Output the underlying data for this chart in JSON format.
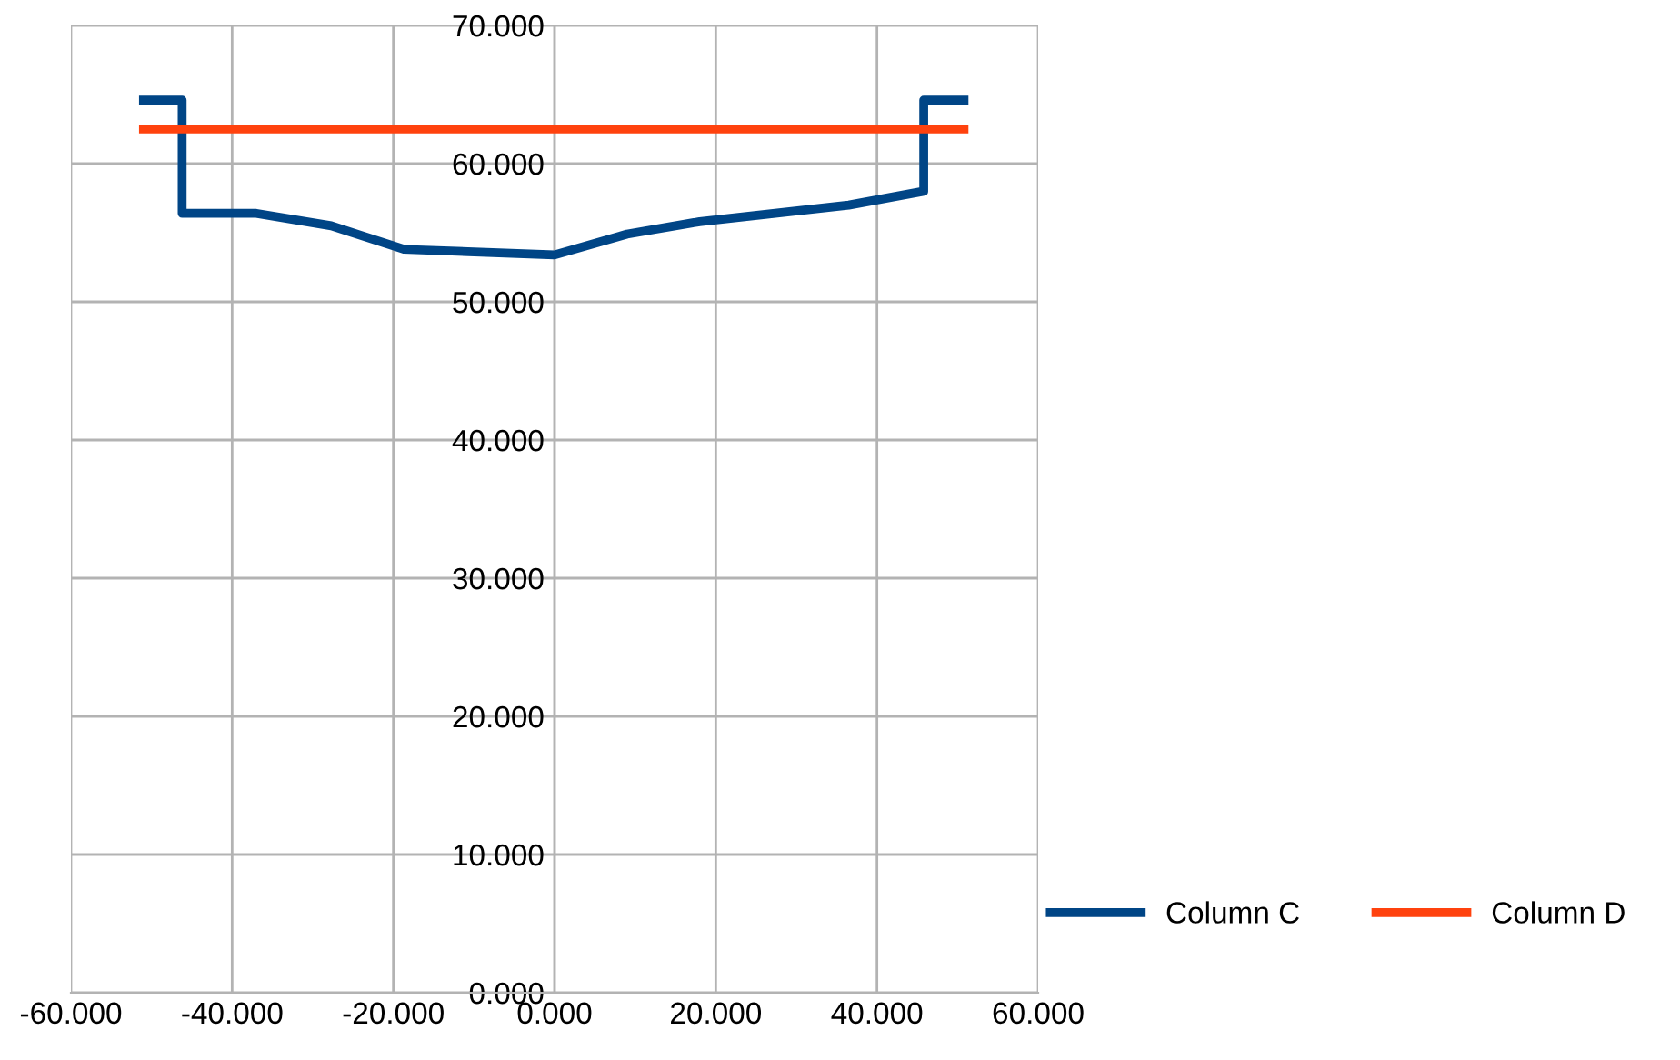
{
  "chart_data": {
    "type": "line",
    "series": [
      {
        "name": "Column C",
        "color": "#004586",
        "x": [
          -51.0,
          -46.2,
          -46.2,
          -37.0,
          -27.7,
          -18.7,
          0,
          9.0,
          18.0,
          36.5,
          45.8,
          45.8,
          50.8
        ],
        "values": [
          64.6,
          64.6,
          56.4,
          56.4,
          55.5,
          53.8,
          53.4,
          54.9,
          55.8,
          57.0,
          58.0,
          64.6,
          64.6
        ]
      },
      {
        "name": "Column D",
        "color": "#ff420e",
        "x": [
          -51.0,
          50.8
        ],
        "values": [
          62.5,
          62.5
        ]
      }
    ],
    "xlim": [
      -60,
      60
    ],
    "ylim": [
      0,
      70
    ],
    "xticks": [
      {
        "value": -60,
        "label": "-60.000"
      },
      {
        "value": -40,
        "label": "-40.000"
      },
      {
        "value": -20,
        "label": "-20.000"
      },
      {
        "value": 0,
        "label": "0.000"
      },
      {
        "value": 20,
        "label": "20.000"
      },
      {
        "value": 40,
        "label": "40.000"
      },
      {
        "value": 60,
        "label": "60.000"
      }
    ],
    "yticks": [
      {
        "value": 0,
        "label": "0.000"
      },
      {
        "value": 10,
        "label": "10.000"
      },
      {
        "value": 20,
        "label": "20.000"
      },
      {
        "value": 30,
        "label": "30.000"
      },
      {
        "value": 40,
        "label": "40.000"
      },
      {
        "value": 50,
        "label": "50.000"
      },
      {
        "value": 60,
        "label": "60.000"
      },
      {
        "value": 70,
        "label": "70.000"
      }
    ],
    "grid": true,
    "legend": "right",
    "marker": "none",
    "line_style": "solid"
  }
}
